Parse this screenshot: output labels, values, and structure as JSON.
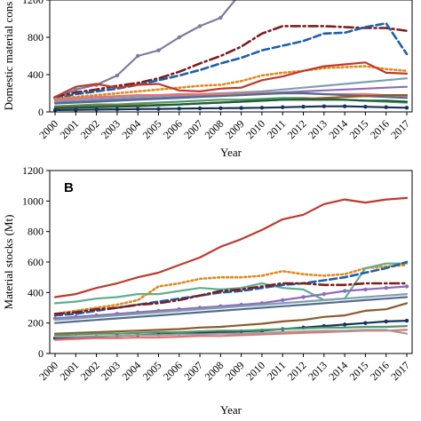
{
  "chart_data": [
    {
      "type": "line",
      "panel_label": "",
      "ylabel": "Domestic material cons",
      "xlabel": "Year",
      "ylim": [
        0,
        1200
      ],
      "yticks": [
        "0",
        "400",
        "800",
        "1200"
      ],
      "x": [
        "2000",
        "2001",
        "2002",
        "2003",
        "2004",
        "2005",
        "2006",
        "2007",
        "2008",
        "2009",
        "2010",
        "2011",
        "2012",
        "2013",
        "2014",
        "2015",
        "2016",
        "2017"
      ],
      "series": [
        {
          "color": "#7f7b9e",
          "style": "solid-marker",
          "values": [
            150,
            240,
            290,
            390,
            600,
            660,
            800,
            920,
            1010,
            1280,
            null,
            null,
            null,
            null,
            null,
            null,
            null,
            null
          ]
        },
        {
          "color": "#7b1e1e",
          "style": "dashdot",
          "values": [
            160,
            210,
            240,
            280,
            310,
            360,
            430,
            520,
            600,
            700,
            840,
            920,
            920,
            920,
            910,
            900,
            900,
            870
          ]
        },
        {
          "color": "#1f5fa8",
          "style": "dashed",
          "values": [
            140,
            190,
            220,
            250,
            290,
            340,
            390,
            450,
            520,
            580,
            660,
            710,
            760,
            840,
            850,
            910,
            950,
            620
          ]
        },
        {
          "color": "#e08a1e",
          "style": "dotted",
          "values": [
            140,
            160,
            180,
            200,
            220,
            240,
            260,
            280,
            290,
            330,
            390,
            420,
            440,
            470,
            480,
            490,
            460,
            440
          ]
        },
        {
          "color": "#c0392b",
          "style": "solid",
          "values": [
            160,
            270,
            300,
            260,
            290,
            300,
            230,
            220,
            250,
            260,
            340,
            380,
            440,
            490,
            510,
            530,
            420,
            410
          ]
        },
        {
          "color": "#7f9fb0",
          "style": "solid",
          "values": [
            120,
            130,
            140,
            150,
            160,
            170,
            180,
            190,
            200,
            210,
            220,
            240,
            260,
            280,
            300,
            320,
            340,
            360
          ]
        },
        {
          "color": "#8e6bb8",
          "style": "solid",
          "values": [
            100,
            110,
            120,
            130,
            140,
            150,
            160,
            170,
            180,
            190,
            200,
            210,
            220,
            230,
            240,
            250,
            260,
            270
          ]
        },
        {
          "color": "#e57373",
          "style": "solid",
          "values": [
            130,
            150,
            160,
            170,
            180,
            180,
            190,
            190,
            190,
            190,
            200,
            200,
            200,
            190,
            190,
            190,
            180,
            170
          ]
        },
        {
          "color": "#556b8e",
          "style": "solid",
          "values": [
            90,
            100,
            110,
            120,
            130,
            140,
            150,
            160,
            170,
            180,
            190,
            200,
            200,
            190,
            180,
            170,
            160,
            150
          ]
        },
        {
          "color": "#4c9a6a",
          "style": "solid",
          "values": [
            60,
            70,
            80,
            80,
            90,
            100,
            110,
            120,
            130,
            130,
            140,
            150,
            150,
            140,
            130,
            120,
            110,
            100
          ]
        },
        {
          "color": "#8b5a2b",
          "style": "solid",
          "values": [
            50,
            55,
            60,
            65,
            70,
            75,
            80,
            90,
            100,
            110,
            120,
            130,
            140,
            150,
            160,
            170,
            180,
            180
          ]
        },
        {
          "color": "#1a5e3a",
          "style": "solid",
          "values": [
            40,
            45,
            50,
            55,
            60,
            70,
            80,
            90,
            100,
            110,
            120,
            130,
            130,
            130,
            130,
            120,
            120,
            110
          ]
        },
        {
          "color": "#16325c",
          "style": "solid-marker",
          "values": [
            20,
            22,
            25,
            28,
            30,
            32,
            35,
            38,
            40,
            42,
            45,
            50,
            55,
            60,
            60,
            55,
            50,
            45
          ]
        }
      ]
    },
    {
      "type": "line",
      "panel_label": "B",
      "ylabel": "Material stocks (Mt)",
      "xlabel": "Year",
      "ylim": [
        0,
        1200
      ],
      "yticks": [
        "0",
        "200",
        "400",
        "600",
        "800",
        "1000",
        "1200"
      ],
      "x": [
        "2000",
        "2001",
        "2002",
        "2003",
        "2004",
        "2005",
        "2006",
        "2007",
        "2008",
        "2009",
        "2010",
        "2011",
        "2012",
        "2013",
        "2014",
        "2015",
        "2016",
        "2017"
      ],
      "series": [
        {
          "color": "#c0392b",
          "style": "solid",
          "values": [
            370,
            390,
            430,
            460,
            500,
            530,
            580,
            630,
            700,
            750,
            810,
            880,
            910,
            980,
            1010,
            990,
            1010,
            1020
          ]
        },
        {
          "color": "#e08a1e",
          "style": "dotted",
          "values": [
            260,
            280,
            300,
            320,
            350,
            440,
            460,
            490,
            500,
            500,
            510,
            540,
            520,
            510,
            520,
            560,
            570,
            580
          ]
        },
        {
          "color": "#5fae8f",
          "style": "solid",
          "values": [
            330,
            340,
            360,
            370,
            390,
            390,
            410,
            430,
            420,
            430,
            460,
            430,
            420,
            350,
            360,
            560,
            590,
            590
          ]
        },
        {
          "color": "#1f5fa8",
          "style": "dashed",
          "values": [
            250,
            260,
            280,
            300,
            320,
            340,
            360,
            380,
            400,
            410,
            430,
            450,
            460,
            480,
            500,
            530,
            560,
            600
          ]
        },
        {
          "color": "#7b1e1e",
          "style": "dashdot",
          "values": [
            260,
            270,
            290,
            300,
            320,
            330,
            350,
            380,
            410,
            420,
            440,
            460,
            460,
            450,
            450,
            460,
            460,
            460
          ]
        },
        {
          "color": "#8e6bb8",
          "style": "solid-marker",
          "values": [
            230,
            240,
            250,
            260,
            270,
            280,
            290,
            300,
            310,
            320,
            330,
            350,
            370,
            390,
            410,
            420,
            430,
            440
          ]
        },
        {
          "color": "#7f9fb0",
          "style": "solid",
          "values": [
            220,
            230,
            240,
            250,
            260,
            270,
            280,
            290,
            300,
            310,
            320,
            330,
            340,
            350,
            360,
            370,
            380,
            390
          ]
        },
        {
          "color": "#556b8e",
          "style": "solid",
          "values": [
            200,
            210,
            220,
            230,
            240,
            250,
            260,
            270,
            280,
            290,
            300,
            310,
            320,
            330,
            340,
            350,
            360,
            370
          ]
        },
        {
          "color": "#8b5a2b",
          "style": "solid",
          "values": [
            130,
            135,
            140,
            145,
            150,
            155,
            160,
            170,
            175,
            185,
            195,
            210,
            220,
            240,
            250,
            280,
            290,
            330
          ]
        },
        {
          "color": "#16325c",
          "style": "solid-marker",
          "values": [
            100,
            105,
            110,
            115,
            120,
            125,
            130,
            135,
            140,
            145,
            150,
            160,
            170,
            180,
            190,
            200,
            210,
            215
          ]
        },
        {
          "color": "#4c9a6a",
          "style": "solid",
          "values": [
            120,
            125,
            130,
            130,
            135,
            140,
            140,
            145,
            150,
            150,
            155,
            160,
            165,
            170,
            170,
            175,
            175,
            180
          ]
        },
        {
          "color": "#e57373",
          "style": "solid",
          "values": [
            90,
            95,
            100,
            100,
            105,
            105,
            110,
            115,
            115,
            120,
            125,
            130,
            135,
            140,
            145,
            150,
            150,
            155
          ]
        },
        {
          "color": "#9e9e9e",
          "style": "solid",
          "values": [
            110,
            110,
            115,
            115,
            120,
            120,
            125,
            125,
            130,
            130,
            135,
            140,
            145,
            150,
            150,
            155,
            155,
            130
          ]
        }
      ]
    }
  ]
}
